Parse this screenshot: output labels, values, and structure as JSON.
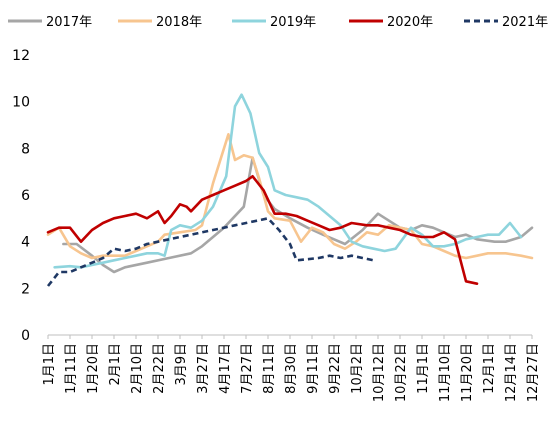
{
  "chart_data": {
    "type": "line",
    "title": "",
    "xlabel": "",
    "ylabel": "",
    "ylim": [
      0,
      12
    ],
    "y_ticks": [
      0,
      2,
      4,
      6,
      8,
      10,
      12
    ],
    "grid": false,
    "legend_placement": "top",
    "x_tick_labels": [
      "1月1日",
      "1月11日",
      "1月20日",
      "2月1日",
      "2月10日",
      "2月22日",
      "3月9日",
      "3月27日",
      "4月17日",
      "7月27日",
      "8月11日",
      "8月30日",
      "9月11日",
      "9月22日",
      "10月2日",
      "10月12日",
      "10月22日",
      "11月1日",
      "11月10日",
      "11月20日",
      "12月1日",
      "12月14日",
      "12月27日"
    ],
    "series": [
      {
        "name": "2017年",
        "color": "#a6a6a6",
        "dash": "solid",
        "points": [
          [
            0.7,
            3.9
          ],
          [
            1.3,
            3.9
          ],
          [
            2,
            3.4
          ],
          [
            2.5,
            3.0
          ],
          [
            3,
            2.7
          ],
          [
            3.5,
            2.9
          ],
          [
            4.5,
            3.1
          ],
          [
            5.5,
            3.3
          ],
          [
            6.5,
            3.5
          ],
          [
            7,
            3.8
          ],
          [
            8,
            4.6
          ],
          [
            8.9,
            5.5
          ],
          [
            9.3,
            7.6
          ],
          [
            9.8,
            6.0
          ],
          [
            10.3,
            5.4
          ],
          [
            11,
            5.0
          ],
          [
            11.8,
            4.6
          ],
          [
            12.5,
            4.3
          ],
          [
            13.5,
            3.9
          ],
          [
            14.3,
            4.5
          ],
          [
            15,
            5.2
          ],
          [
            15.5,
            4.9
          ],
          [
            16,
            4.6
          ],
          [
            16.5,
            4.5
          ],
          [
            17,
            4.7
          ],
          [
            17.5,
            4.6
          ],
          [
            18,
            4.4
          ],
          [
            18.5,
            4.2
          ],
          [
            19,
            4.3
          ],
          [
            19.5,
            4.1
          ],
          [
            20.3,
            4.0
          ],
          [
            20.8,
            4.0
          ],
          [
            21.5,
            4.2
          ],
          [
            22,
            4.6
          ]
        ]
      },
      {
        "name": "2018年",
        "color": "#f7c58f",
        "dash": "solid",
        "points": [
          [
            0,
            4.3
          ],
          [
            0.5,
            4.6
          ],
          [
            1,
            3.8
          ],
          [
            1.5,
            3.5
          ],
          [
            2,
            3.3
          ],
          [
            2.5,
            3.4
          ],
          [
            3,
            3.4
          ],
          [
            3.5,
            3.4
          ],
          [
            4,
            3.6
          ],
          [
            4.5,
            3.8
          ],
          [
            5,
            4.0
          ],
          [
            5.3,
            4.3
          ],
          [
            6,
            4.4
          ],
          [
            6.7,
            4.5
          ],
          [
            7,
            4.7
          ],
          [
            7.5,
            6.5
          ],
          [
            8.2,
            8.6
          ],
          [
            8.5,
            7.5
          ],
          [
            8.9,
            7.7
          ],
          [
            9.3,
            7.6
          ],
          [
            9.6,
            6.7
          ],
          [
            10,
            5.3
          ],
          [
            10.3,
            5.0
          ],
          [
            11,
            4.9
          ],
          [
            11.5,
            4.0
          ],
          [
            12,
            4.6
          ],
          [
            12.5,
            4.4
          ],
          [
            13,
            3.9
          ],
          [
            13.5,
            3.7
          ],
          [
            14,
            4.0
          ],
          [
            14.5,
            4.4
          ],
          [
            15,
            4.3
          ],
          [
            15.5,
            4.7
          ],
          [
            16,
            4.6
          ],
          [
            16.5,
            4.5
          ],
          [
            17,
            3.9
          ],
          [
            17.5,
            3.8
          ],
          [
            18,
            3.6
          ],
          [
            18.5,
            3.4
          ],
          [
            19,
            3.3
          ],
          [
            19.5,
            3.4
          ],
          [
            20,
            3.5
          ],
          [
            20.8,
            3.5
          ],
          [
            21.5,
            3.4
          ],
          [
            22,
            3.3
          ]
        ]
      },
      {
        "name": "2019年",
        "color": "#8ed4dd",
        "dash": "solid",
        "points": [
          [
            0.3,
            2.9
          ],
          [
            1,
            2.95
          ],
          [
            1.5,
            2.9
          ],
          [
            2,
            3.0
          ],
          [
            2.5,
            3.1
          ],
          [
            3,
            3.2
          ],
          [
            3.5,
            3.3
          ],
          [
            4,
            3.4
          ],
          [
            4.5,
            3.5
          ],
          [
            5,
            3.5
          ],
          [
            5.3,
            3.4
          ],
          [
            5.6,
            4.5
          ],
          [
            6,
            4.7
          ],
          [
            6.5,
            4.6
          ],
          [
            7,
            4.9
          ],
          [
            7.5,
            5.5
          ],
          [
            8.1,
            6.8
          ],
          [
            8.5,
            9.8
          ],
          [
            8.8,
            10.3
          ],
          [
            9.2,
            9.5
          ],
          [
            9.6,
            7.8
          ],
          [
            10,
            7.2
          ],
          [
            10.3,
            6.2
          ],
          [
            10.8,
            6.0
          ],
          [
            11.3,
            5.9
          ],
          [
            11.8,
            5.8
          ],
          [
            12.3,
            5.5
          ],
          [
            12.8,
            5.1
          ],
          [
            13.3,
            4.7
          ],
          [
            13.8,
            4.0
          ],
          [
            14.3,
            3.8
          ],
          [
            14.8,
            3.7
          ],
          [
            15.3,
            3.6
          ],
          [
            15.8,
            3.7
          ],
          [
            16.5,
            4.6
          ],
          [
            17,
            4.3
          ],
          [
            17.5,
            3.8
          ],
          [
            18,
            3.8
          ],
          [
            18.5,
            3.9
          ],
          [
            19,
            4.1
          ],
          [
            19.5,
            4.2
          ],
          [
            20,
            4.3
          ],
          [
            20.5,
            4.3
          ],
          [
            21,
            4.8
          ],
          [
            21.5,
            4.2
          ]
        ]
      },
      {
        "name": "2020年",
        "color": "#c00000",
        "dash": "solid",
        "points": [
          [
            0,
            4.4
          ],
          [
            0.5,
            4.6
          ],
          [
            1,
            4.6
          ],
          [
            1.5,
            4.0
          ],
          [
            2,
            4.5
          ],
          [
            2.5,
            4.8
          ],
          [
            3,
            5.0
          ],
          [
            3.5,
            5.1
          ],
          [
            4,
            5.2
          ],
          [
            4.5,
            5.0
          ],
          [
            5,
            5.3
          ],
          [
            5.3,
            4.8
          ],
          [
            5.6,
            5.1
          ],
          [
            6,
            5.6
          ],
          [
            6.3,
            5.5
          ],
          [
            6.5,
            5.3
          ],
          [
            7,
            5.8
          ],
          [
            7.5,
            6.0
          ],
          [
            8,
            6.2
          ],
          [
            8.5,
            6.4
          ],
          [
            9,
            6.6
          ],
          [
            9.3,
            6.8
          ],
          [
            9.8,
            6.2
          ],
          [
            10.3,
            5.2
          ],
          [
            10.8,
            5.2
          ],
          [
            11.3,
            5.1
          ],
          [
            11.8,
            4.9
          ],
          [
            12.3,
            4.7
          ],
          [
            12.8,
            4.5
          ],
          [
            13.3,
            4.6
          ],
          [
            13.8,
            4.8
          ],
          [
            14.5,
            4.7
          ],
          [
            15,
            4.7
          ],
          [
            15.5,
            4.6
          ],
          [
            16,
            4.5
          ],
          [
            16.5,
            4.3
          ],
          [
            17,
            4.2
          ],
          [
            17.5,
            4.2
          ],
          [
            18,
            4.4
          ],
          [
            18.5,
            4.1
          ],
          [
            19,
            2.3
          ],
          [
            19.5,
            2.2
          ]
        ]
      },
      {
        "name": "2021年",
        "color": "#1f3864",
        "dash": "dashed",
        "points": [
          [
            0,
            2.1
          ],
          [
            0.5,
            2.7
          ],
          [
            1,
            2.7
          ],
          [
            1.5,
            2.9
          ],
          [
            2,
            3.1
          ],
          [
            2.5,
            3.3
          ],
          [
            3,
            3.7
          ],
          [
            3.5,
            3.6
          ],
          [
            4,
            3.7
          ],
          [
            4.5,
            3.9
          ],
          [
            5,
            4.0
          ],
          [
            5.5,
            4.1
          ],
          [
            6,
            4.2
          ],
          [
            6.5,
            4.3
          ],
          [
            7,
            4.4
          ],
          [
            7.5,
            4.5
          ],
          [
            8,
            4.6
          ],
          [
            8.5,
            4.7
          ],
          [
            9,
            4.8
          ],
          [
            9.5,
            4.9
          ],
          [
            10,
            5.0
          ],
          [
            10.5,
            4.5
          ],
          [
            11,
            3.9
          ],
          [
            11.3,
            3.2
          ],
          [
            11.8,
            3.25
          ],
          [
            12.3,
            3.3
          ],
          [
            12.8,
            3.4
          ],
          [
            13.3,
            3.3
          ],
          [
            13.8,
            3.4
          ],
          [
            14.3,
            3.3
          ],
          [
            14.8,
            3.2
          ]
        ]
      }
    ]
  }
}
